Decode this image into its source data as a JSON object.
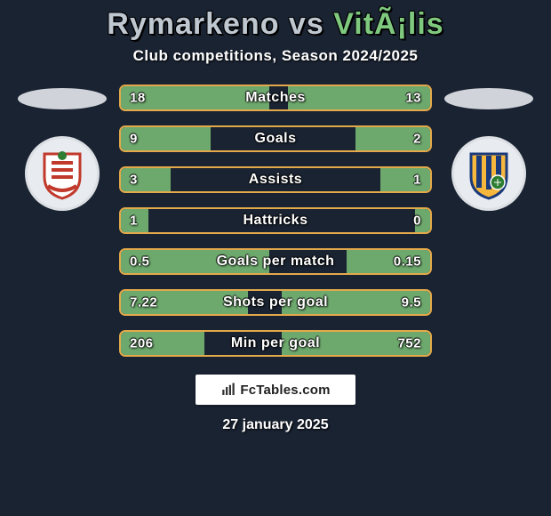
{
  "title": {
    "player1": "Rymarkeno",
    "vs": "vs",
    "player2": "VitÃ¡lis",
    "player1_color": "#bfc7d0",
    "vs_color": "#bfc7d0",
    "player2_color": "#7fc97f"
  },
  "subtitle": "Club competitions, Season 2024/2025",
  "crest_left": {
    "shape": "shield",
    "stripes_color": "#c0392b",
    "accent_color": "#2e7d32",
    "bg": "#ffffff"
  },
  "crest_right": {
    "shape": "shield",
    "primary": "#f6b73c",
    "secondary": "#1a3a7a",
    "accent": "#2e7d32"
  },
  "bars": {
    "border_color": "#e3a94a",
    "fill_color": "#6da86d",
    "rows": [
      {
        "label": "Matches",
        "left": "18",
        "right": "13",
        "left_pct": 48,
        "right_pct": 46
      },
      {
        "label": "Goals",
        "left": "9",
        "right": "2",
        "left_pct": 29,
        "right_pct": 24
      },
      {
        "label": "Assists",
        "left": "3",
        "right": "1",
        "left_pct": 16,
        "right_pct": 16
      },
      {
        "label": "Hattricks",
        "left": "1",
        "right": "0",
        "left_pct": 9,
        "right_pct": 5
      },
      {
        "label": "Goals per match",
        "left": "0.5",
        "right": "0.15",
        "left_pct": 48,
        "right_pct": 27
      },
      {
        "label": "Shots per goal",
        "left": "7.22",
        "right": "9.5",
        "left_pct": 41,
        "right_pct": 48
      },
      {
        "label": "Min per goal",
        "left": "206",
        "right": "752",
        "left_pct": 27,
        "right_pct": 48
      }
    ]
  },
  "brand": "FcTables.com",
  "date": "27 january 2025",
  "colors": {
    "page_bg": "#1a2332",
    "text": "#ffffff"
  }
}
